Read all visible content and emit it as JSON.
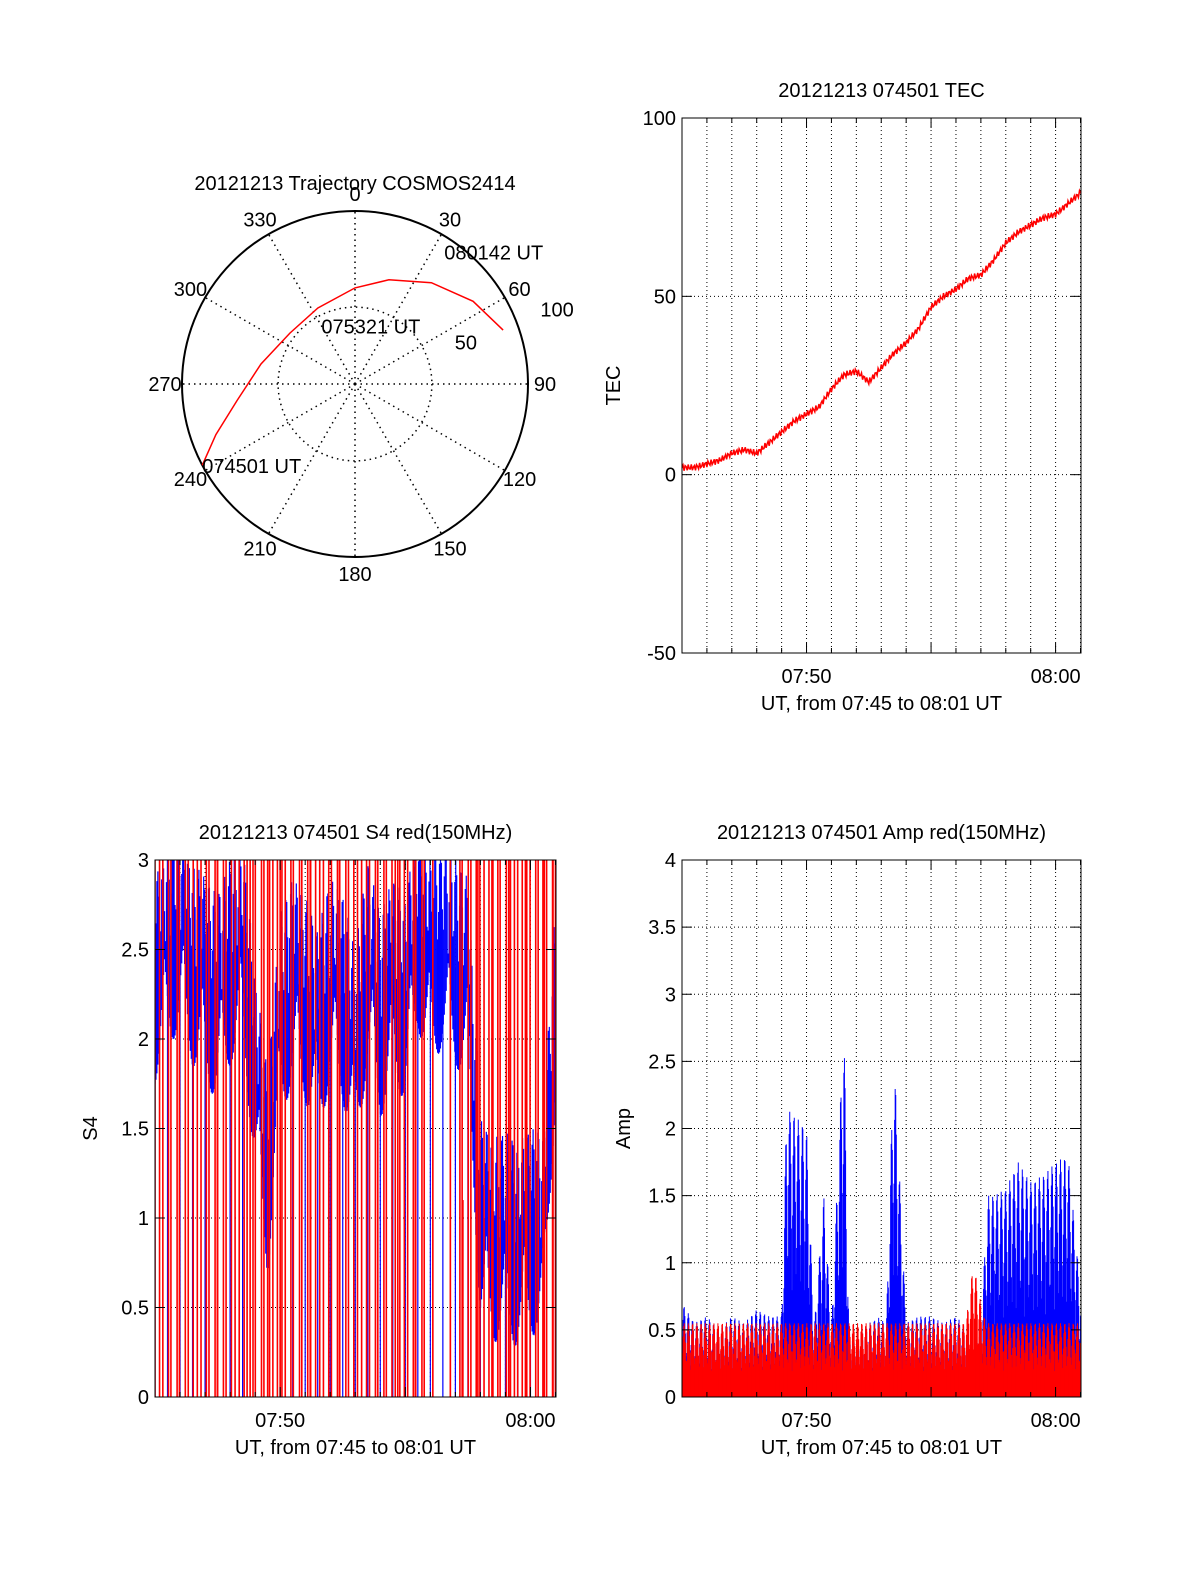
{
  "chart_data": [
    {
      "type": "polar",
      "title": "20121213 Trajectory COSMOS2414",
      "angle_labels": [
        "0",
        "30",
        "60",
        "90",
        "120",
        "150",
        "180",
        "210",
        "240",
        "270",
        "300",
        "330"
      ],
      "radial_labels": [
        "50",
        "100"
      ],
      "elevation_max": 90,
      "track": {
        "color": "#ff0000",
        "points": [
          [
            242,
            0
          ],
          [
            250,
            13
          ],
          [
            262,
            28
          ],
          [
            282,
            40
          ],
          [
            308,
            47
          ],
          [
            334,
            46
          ],
          [
            360,
            40
          ],
          [
            378,
            33
          ],
          [
            397,
            24
          ],
          [
            415,
            15
          ],
          [
            430,
            8
          ]
        ]
      },
      "annotations": [
        {
          "text": "074501 UT",
          "az": 242,
          "el": 0
        },
        {
          "text": "075321 UT",
          "az": 330,
          "el": 55
        },
        {
          "text": "080142 UT",
          "az": 34,
          "el": 7
        }
      ]
    },
    {
      "type": "line",
      "title": "20121213 074501 TEC",
      "xlabel": "UT, from 07:45 to 08:01 UT",
      "ylabel": "TEC",
      "xlim": [
        0,
        16.02
      ],
      "ylim": [
        -50,
        100
      ],
      "x_ticks": [
        {
          "value": 5.0,
          "label": "07:50"
        },
        {
          "value": 15.0,
          "label": "08:00"
        }
      ],
      "y_ticks": [
        "-50",
        "0",
        "50",
        "100"
      ],
      "grid": true,
      "series": [
        {
          "color": "#ff0000",
          "x": [
            0,
            0.5,
            1.0,
            1.5,
            2.0,
            2.5,
            3.0,
            3.5,
            4.0,
            4.5,
            5.0,
            5.5,
            6.0,
            6.5,
            7.0,
            7.5,
            8.0,
            8.5,
            9.0,
            9.5,
            10.0,
            10.5,
            11.0,
            11.5,
            12.0,
            12.5,
            13.0,
            13.5,
            14.0,
            14.5,
            15.0,
            15.5,
            16.0
          ],
          "y": [
            2,
            2,
            3,
            4,
            6,
            7,
            6,
            9,
            12,
            15,
            17,
            19,
            24,
            28,
            29,
            26,
            30,
            34,
            37,
            41,
            47,
            50,
            52,
            55,
            56,
            60,
            65,
            68,
            70,
            72,
            73,
            76,
            79
          ]
        }
      ]
    },
    {
      "type": "line",
      "title": "20121213 074501 S4 red(150MHz)",
      "xlabel": "UT, from 07:45 to 08:01 UT",
      "ylabel": "S4",
      "xlim": [
        0,
        16.02
      ],
      "ylim": [
        0,
        3
      ],
      "x_ticks": [
        {
          "value": 5.0,
          "label": "07:50"
        },
        {
          "value": 15.0,
          "label": "08:00"
        }
      ],
      "y_ticks": [
        "0",
        "0.5",
        "1",
        "1.5",
        "2",
        "2.5",
        "3"
      ],
      "grid": true,
      "series": [
        {
          "color": "#0000ff",
          "x": [
            0,
            0.5,
            1.0,
            1.5,
            2.0,
            2.5,
            3.0,
            3.5,
            4.0,
            4.5,
            5.0,
            5.5,
            6.0,
            6.5,
            7.0,
            7.5,
            8.0,
            8.5,
            9.0,
            9.5,
            10.0,
            10.5,
            11.0,
            11.5,
            12.0,
            12.5,
            13.0,
            13.5,
            14.0,
            14.5,
            15.0,
            15.5,
            16.0
          ],
          "y": [
            2.3,
            2.5,
            2.6,
            2.4,
            2.3,
            2.2,
            2.4,
            2.5,
            1.8,
            1.2,
            2.1,
            2.3,
            2.2,
            2.0,
            2.3,
            2.2,
            1.9,
            2.4,
            2.1,
            2.3,
            2.2,
            2.6,
            2.4,
            2.5,
            2.4,
            2.3,
            0.95,
            0.85,
            0.88,
            0.82,
            0.9,
            0.88,
            2.2
          ]
        },
        {
          "color": "#ff0000",
          "x": [
            2.5,
            3.8,
            4.5,
            5.0,
            6.2,
            7.3,
            8.9,
            9.7,
            10.4,
            11.1,
            11.8,
            12.3,
            12.9,
            13.5,
            14.2,
            14.8,
            15.5,
            15.9
          ],
          "y": [
            3,
            3,
            3,
            3,
            3,
            3,
            3,
            3,
            3,
            3,
            3,
            1.1,
            3,
            3,
            3,
            3,
            3,
            3
          ]
        }
      ]
    },
    {
      "type": "line",
      "title": "20121213 074501 Amp red(150MHz)",
      "xlabel": "UT, from 07:45 to 08:01 UT",
      "ylabel": "Amp",
      "xlim": [
        0,
        16.02
      ],
      "ylim": [
        0,
        4
      ],
      "x_ticks": [
        {
          "value": 5.0,
          "label": "07:50"
        },
        {
          "value": 15.0,
          "label": "08:00"
        }
      ],
      "y_ticks": [
        "0",
        "0.5",
        "1",
        "1.5",
        "2",
        "2.5",
        "3",
        "3.5",
        "4"
      ],
      "grid": true,
      "series": [
        {
          "color": "#0000ff",
          "x": [
            0,
            0.5,
            1.0,
            1.5,
            2.0,
            2.5,
            3.0,
            3.5,
            4.0,
            4.2,
            4.5,
            5.0,
            5.3,
            5.7,
            6.0,
            6.5,
            6.7,
            7.0,
            7.5,
            8.0,
            8.2,
            8.5,
            9.0,
            9.5,
            10.0,
            10.5,
            11.0,
            11.5,
            12.0,
            12.3,
            12.5,
            13.0,
            13.5,
            14.0,
            14.5,
            15.0,
            15.5,
            16.0
          ],
          "y": [
            0.7,
            0.55,
            0.6,
            0.5,
            0.6,
            0.55,
            0.65,
            0.6,
            0.6,
            2.15,
            2.1,
            2.0,
            0.5,
            1.5,
            0.5,
            2.85,
            0.5,
            0.45,
            0.55,
            0.6,
            0.5,
            2.6,
            0.55,
            0.6,
            0.6,
            0.55,
            0.6,
            0.5,
            0.6,
            1.5,
            1.5,
            1.55,
            1.75,
            1.6,
            1.65,
            1.75,
            1.8,
            0.8
          ]
        },
        {
          "color": "#ff0000",
          "x": [
            11.4,
            11.7,
            12.0,
            12.2
          ],
          "y": [
            0.55,
            1.0,
            0.7,
            0.55
          ]
        }
      ]
    }
  ]
}
